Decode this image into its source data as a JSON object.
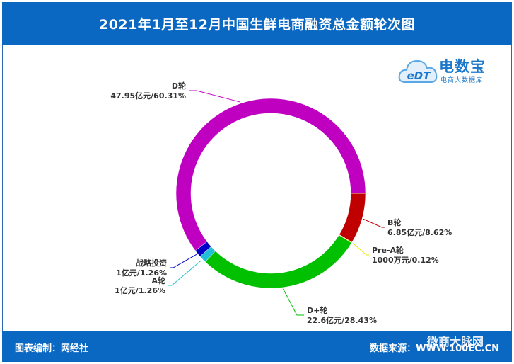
{
  "title": "2021年1月至12月中国生鲜电商融资总金额轮次图",
  "footer": {
    "left": "图表编制：网经社",
    "right": "数据来源：WWW.100EC.CN",
    "watermark": "微商大脉网"
  },
  "logo": {
    "brand": "电数宝",
    "sub": "电商大数据库",
    "mark": "eDT"
  },
  "colors": {
    "header": "#0a67c2",
    "accent": "#1b77c9"
  },
  "chart_data": {
    "type": "pie",
    "style": "donut",
    "title": "2021年1月至12月中国生鲜电商融资总金额轮次图",
    "unit": "亿元",
    "slices": [
      {
        "name": "B轮",
        "value": 6.85,
        "percent": 8.62,
        "label_value": "6.85亿元/8.62%",
        "color": "#c00000"
      },
      {
        "name": "Pre-A轮",
        "value": 0.1,
        "percent": 0.12,
        "label_value": "1000万元/0.12%",
        "color": "#e8e800"
      },
      {
        "name": "D+轮",
        "value": 22.6,
        "percent": 28.43,
        "label_value": "22.6亿元/28.43%",
        "color": "#00c000"
      },
      {
        "name": "A轮",
        "value": 1,
        "percent": 1.26,
        "label_value": "1亿元/1.26%",
        "color": "#22c0d8"
      },
      {
        "name": "战略投资",
        "value": 1,
        "percent": 1.26,
        "label_value": "1亿元/1.26%",
        "color": "#0000c8"
      },
      {
        "name": "D轮",
        "value": 47.95,
        "percent": 60.31,
        "label_value": "47.95亿元/60.31%",
        "color": "#c000c0"
      }
    ]
  }
}
